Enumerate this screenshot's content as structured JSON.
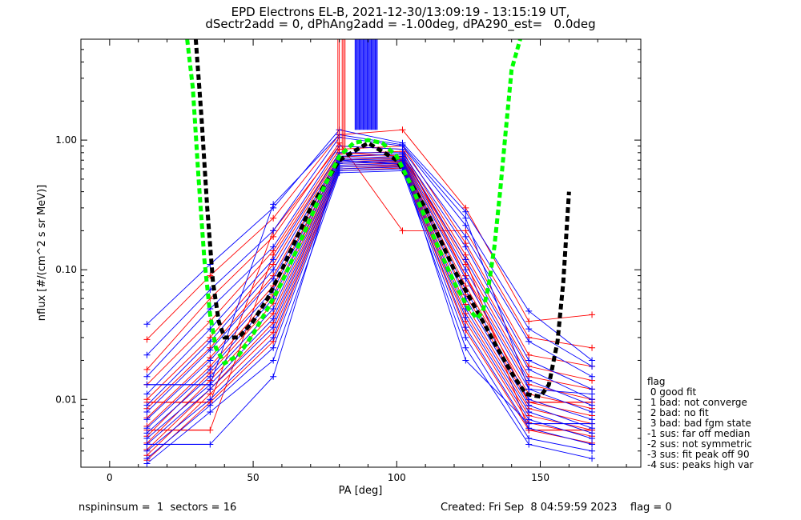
{
  "header": {
    "title_line1": "EPD Electrons EL-B, 2021-12-30/13:09:19 - 13:15:19 UT,",
    "title_line2": "dSectr2add = 0, dPhAng2add = -1.00deg, dPA290_est=   0.0deg"
  },
  "legend": {
    "heading": "flag",
    "items": [
      " 0 good fit",
      " 1 bad: not converge",
      " 2 bad: no fit",
      " 3 bad: bad fgm state",
      "-1 sus: far off median",
      "-2 sus: not symmetric",
      "-3 sus: fit peak off 90",
      "-4 sus: peaks high var"
    ]
  },
  "footer": {
    "left": "nspininsum =  1  sectors = 16",
    "right": "Created: Fri Sep  8 04:59:59 2023    flag = 0"
  },
  "chart_data": {
    "type": "line",
    "xlabel": "PA [deg]",
    "ylabel": "nflux [#/(cm^2 s sr MeV)]",
    "xlim": [
      -10,
      185
    ],
    "ylim": [
      0.003,
      6
    ],
    "ylog": true,
    "xticks": [
      0,
      50,
      100,
      150
    ],
    "xtick_labels": [
      "0",
      "50",
      "100",
      "150"
    ],
    "yticks": [
      0.01,
      0.1,
      1.0
    ],
    "ytick_labels": [
      "0.01",
      "0.10",
      "1.00"
    ],
    "colors": {
      "blue": "#0000ff",
      "red": "#ff0000",
      "green": "#00ff00",
      "black": "#000000"
    },
    "pa_bins": [
      13,
      35,
      57,
      80,
      102,
      124,
      146,
      168
    ],
    "series_blue": [
      [
        0.038,
        0.11,
        0.3,
        1.2,
        0.95,
        0.28,
        0.048,
        0.02
      ],
      [
        0.022,
        0.07,
        0.2,
        1.05,
        0.9,
        0.22,
        0.035,
        0.018
      ],
      [
        0.015,
        0.05,
        0.15,
        0.9,
        0.85,
        0.18,
        0.028,
        0.015
      ],
      [
        0.011,
        0.035,
        0.12,
        0.8,
        0.8,
        0.15,
        0.02,
        0.012
      ],
      [
        0.009,
        0.028,
        0.1,
        0.75,
        0.78,
        0.12,
        0.017,
        0.01
      ],
      [
        0.008,
        0.024,
        0.085,
        0.72,
        0.75,
        0.1,
        0.014,
        0.009
      ],
      [
        0.007,
        0.02,
        0.07,
        0.7,
        0.72,
        0.085,
        0.012,
        0.008
      ],
      [
        0.006,
        0.017,
        0.06,
        0.68,
        0.7,
        0.07,
        0.01,
        0.007
      ],
      [
        0.0055,
        0.015,
        0.05,
        0.66,
        0.68,
        0.06,
        0.009,
        0.006
      ],
      [
        0.005,
        0.013,
        0.042,
        0.64,
        0.66,
        0.05,
        0.008,
        0.0055
      ],
      [
        0.0045,
        0.012,
        0.036,
        0.62,
        0.64,
        0.043,
        0.007,
        0.005
      ],
      [
        0.004,
        0.01,
        0.03,
        0.6,
        0.62,
        0.036,
        0.006,
        0.0045
      ],
      [
        0.0035,
        0.009,
        0.025,
        0.58,
        0.6,
        0.03,
        0.005,
        0.004
      ],
      [
        0.0032,
        0.008,
        0.02,
        0.56,
        0.58,
        0.025,
        0.0045,
        0.0035
      ],
      [
        0.0045,
        0.0045,
        0.015,
        0.7,
        0.65,
        0.02,
        0.0065,
        0.0065
      ],
      [
        0.013,
        0.013,
        0.32,
        1.1,
        0.92,
        0.25,
        0.012,
        0.011
      ]
    ],
    "series_red": [
      [
        0.029,
        0.09,
        0.25,
        1.1,
        1.2,
        0.3,
        0.04,
        0.045
      ],
      [
        0.017,
        0.06,
        0.18,
        0.95,
        0.2,
        0.2,
        0.03,
        0.025
      ],
      [
        0.013,
        0.04,
        0.14,
        0.85,
        0.9,
        0.16,
        0.022,
        0.018
      ],
      [
        0.01,
        0.03,
        0.11,
        0.78,
        0.82,
        0.13,
        0.018,
        0.014
      ],
      [
        0.0085,
        0.025,
        0.09,
        0.74,
        0.78,
        0.11,
        0.015,
        0.012
      ],
      [
        0.0072,
        0.021,
        0.075,
        0.7,
        0.74,
        0.09,
        0.013,
        0.01
      ],
      [
        0.0062,
        0.018,
        0.064,
        0.68,
        0.71,
        0.075,
        0.011,
        0.0085
      ],
      [
        0.0052,
        0.016,
        0.055,
        0.66,
        0.69,
        0.064,
        0.0095,
        0.0075
      ],
      [
        0.0046,
        0.014,
        0.046,
        0.64,
        0.67,
        0.054,
        0.0085,
        0.0065
      ],
      [
        0.0041,
        0.012,
        0.039,
        0.62,
        0.65,
        0.046,
        0.0075,
        0.0058
      ],
      [
        0.0037,
        0.011,
        0.033,
        0.6,
        0.63,
        0.04,
        0.0066,
        0.0052
      ],
      [
        0.0034,
        0.0095,
        0.028,
        0.58,
        0.61,
        0.034,
        0.0058,
        0.0046
      ],
      [
        0.0058,
        0.0058,
        0.13,
        0.8,
        0.75,
        0.12,
        0.0058,
        0.0058
      ],
      [
        0.0095,
        0.0095,
        0.2,
        0.9,
        0.85,
        0.09,
        0.0095,
        0.0095
      ]
    ],
    "green_fit": {
      "x": [
        27,
        29,
        31,
        33,
        35,
        37,
        40,
        45,
        50,
        55,
        60,
        65,
        70,
        75,
        80,
        85,
        90,
        95,
        100,
        105,
        110,
        115,
        120,
        125,
        128,
        130,
        132,
        134,
        136,
        138,
        140,
        143
      ],
      "y": [
        6,
        2.5,
        0.5,
        0.12,
        0.045,
        0.025,
        0.019,
        0.022,
        0.032,
        0.05,
        0.08,
        0.14,
        0.25,
        0.45,
        0.75,
        0.95,
        1.0,
        0.95,
        0.75,
        0.45,
        0.25,
        0.14,
        0.08,
        0.05,
        0.042,
        0.048,
        0.075,
        0.15,
        0.4,
        1.2,
        3.5,
        6
      ]
    },
    "black_fit": {
      "x": [
        30,
        32,
        34,
        36,
        38,
        40,
        45,
        50,
        55,
        60,
        70,
        80,
        90,
        100,
        110,
        120,
        130,
        135,
        140,
        145,
        150,
        153,
        156,
        158,
        160
      ],
      "y": [
        6,
        1.5,
        0.3,
        0.08,
        0.04,
        0.03,
        0.03,
        0.04,
        0.06,
        0.1,
        0.3,
        0.7,
        0.95,
        0.7,
        0.3,
        0.1,
        0.04,
        0.025,
        0.016,
        0.011,
        0.0105,
        0.013,
        0.028,
        0.08,
        0.4
      ]
    }
  }
}
